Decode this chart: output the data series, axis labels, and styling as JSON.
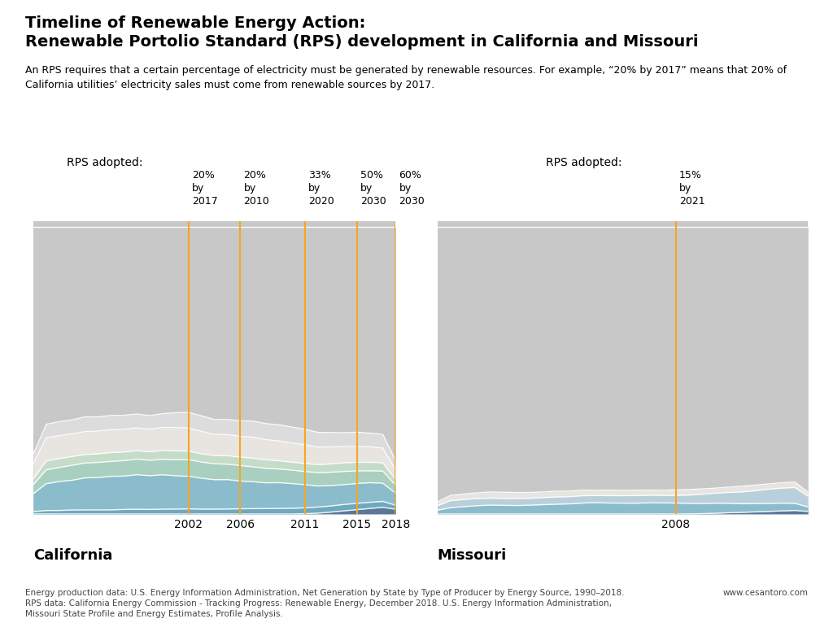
{
  "title_line1": "Timeline of Renewable Energy Action:",
  "title_line2": "Renewable Portolio Standard (RPS) development in California and Missouri",
  "subtitle": "An RPS requires that a certain percentage of electricity must be generated by renewable resources. For example, “20% by 2017” means that 20% of\nCalifornia utilities’ electricity sales must come from renewable sources by 2017.",
  "footnote": "Energy production data: U.S. Energy Information Administration, Net Generation by State by Type of Producer by Energy Source, 1990–2018.\nRPS data: California Energy Commission - Tracking Progress: Renewable Energy, December 2018. U.S. Energy Information Administration,\nMissouri State Profile and Energy Estimates, Profile Analysis.",
  "footnote_right": "www.cesantoro.com",
  "ca_label": "California",
  "mo_label": "Missouri",
  "rps_label": "RPS adopted:",
  "ca_rps_years": [
    2002,
    2006,
    2011,
    2015,
    2018
  ],
  "ca_rps_labels": [
    "20%\nby\n2017",
    "20%\nby\n2010",
    "33%\nby\n2020",
    "50%\nby\n2030",
    "60%\nby\n2030"
  ],
  "mo_rps_years": [
    2008
  ],
  "mo_rps_labels": [
    "15%\nby\n2021"
  ],
  "year_start": 1990,
  "year_end": 2018,
  "bg_color": "#ffffff",
  "orange_line": "#f5a623",
  "ca_xticks": [
    2002,
    2006,
    2011,
    2015,
    2018
  ],
  "mo_xticks": [
    2008
  ],
  "color_gray": "#c8c8c8",
  "color_white1": "#dcdcdc",
  "color_white2": "#e8e4e0",
  "color_light_green": "#c5dcc8",
  "color_mint": "#a8cfc0",
  "color_light_blue": "#8bbccc",
  "color_medium_blue": "#70a8c0",
  "color_dark_blue": "#5a7898"
}
